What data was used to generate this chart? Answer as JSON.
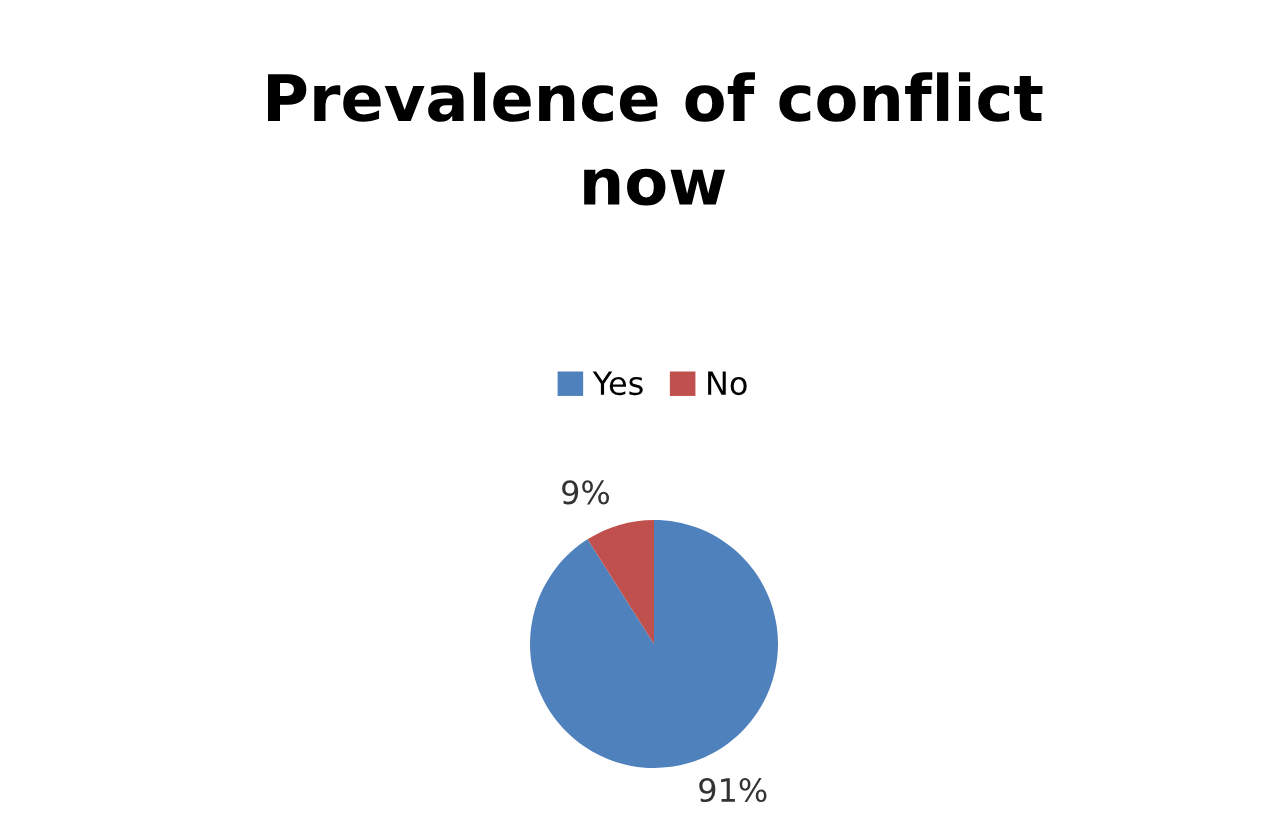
{
  "chart_data": {
    "type": "pie",
    "title": "Prevalence of conflict\nnow",
    "categories": [
      "Yes",
      "No"
    ],
    "values": [
      91,
      9
    ],
    "colors": [
      "#4f81bd",
      "#c0504d"
    ],
    "value_labels": [
      "91%",
      "9%"
    ],
    "legend": "top"
  }
}
